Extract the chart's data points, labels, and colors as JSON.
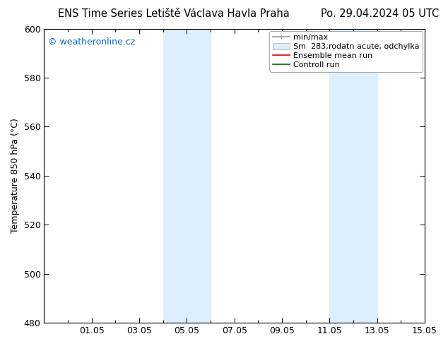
{
  "title_left": "ENS Time Series Letiště Václava Havla Praha",
  "title_right": "Po. 29.04.2024 05 UTC",
  "ylabel": "Temperature 850 hPa (°C)",
  "watermark": "© weatheronline.cz",
  "watermark_color": "#0066cc",
  "ylim": [
    480,
    600
  ],
  "yticks": [
    480,
    500,
    520,
    540,
    560,
    580,
    600
  ],
  "xtick_positions": [
    2,
    4,
    6,
    8,
    10,
    12,
    14,
    16
  ],
  "xtick_labels": [
    "01.05",
    "03.05",
    "05.05",
    "07.05",
    "09.05",
    "11.05",
    "13.05",
    "15.05"
  ],
  "xlim": [
    0,
    16
  ],
  "shaded_bands": [
    {
      "x_start": 5.0,
      "x_end": 7.0
    },
    {
      "x_start": 12.0,
      "x_end": 14.0
    }
  ],
  "shade_color": "#ddeeff",
  "bg_color": "#ffffff",
  "spine_color": "#000000",
  "font_size": 9,
  "title_font_size": 10.5,
  "legend_font_size": 8,
  "watermark_font_size": 9
}
